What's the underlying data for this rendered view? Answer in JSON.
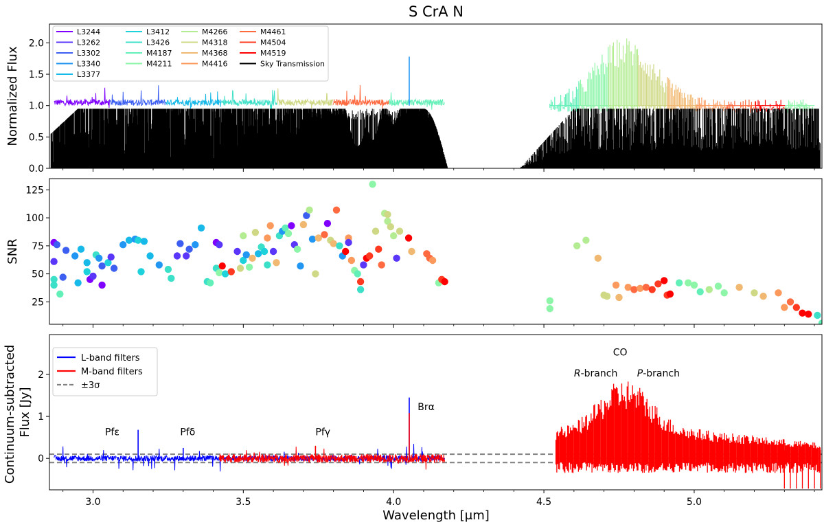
{
  "chart_data": [
    {
      "type": "line",
      "title": "S CrA N",
      "xlabel": "",
      "ylabel": "Normalized Flux",
      "xlim": [
        2.855,
        5.425
      ],
      "ylim": [
        0.0,
        2.3
      ],
      "yticks": [
        0.0,
        0.5,
        1.0,
        1.5,
        2.0
      ],
      "yticklabels": [
        "0.0",
        "0.5",
        "1.0",
        "1.5",
        "2.0"
      ],
      "legend_position": "top-left",
      "legend": [
        {
          "label": "L3244",
          "color": "#7f00ff"
        },
        {
          "label": "L3262",
          "color": "#5a35fa"
        },
        {
          "label": "L3302",
          "color": "#3c5ff2"
        },
        {
          "label": "L3340",
          "color": "#2196f3"
        },
        {
          "label": "L3377",
          "color": "#17b9e8"
        },
        {
          "label": "L3412",
          "color": "#1ed2dc"
        },
        {
          "label": "L3426",
          "color": "#3ce0c8"
        },
        {
          "label": "M4187",
          "color": "#62f0b8"
        },
        {
          "label": "M4211",
          "color": "#8cf5a8"
        },
        {
          "label": "M4266",
          "color": "#b4ec94"
        },
        {
          "label": "M4318",
          "color": "#cfd884"
        },
        {
          "label": "M4368",
          "color": "#f0b870"
        },
        {
          "label": "M4416",
          "color": "#fc9a5e"
        },
        {
          "label": "M4461",
          "color": "#ff6a40"
        },
        {
          "label": "M4504",
          "color": "#ff3a20"
        },
        {
          "label": "M4519",
          "color": "#ff0000"
        },
        {
          "label": "Sky Transmission",
          "color": "#000000"
        }
      ],
      "series": [
        {
          "name": "L-band normalized flux",
          "x_range": [
            2.87,
            4.17
          ],
          "level": 1.05,
          "spread": 0.1
        },
        {
          "name": "M-band normalized flux",
          "x_range": [
            4.52,
            5.4
          ],
          "level": 1.15,
          "spread": 0.45,
          "peak": 2.0
        },
        {
          "name": "Sky Transmission",
          "segments": [
            [
              2.86,
              4.18
            ],
            [
              4.42,
              5.42
            ]
          ],
          "gap": [
            4.18,
            4.42
          ],
          "level": 0.95
        },
        {
          "name": "Br alpha spike",
          "x": 4.052,
          "y": 1.78
        }
      ]
    },
    {
      "type": "scatter",
      "title": "",
      "xlabel": "",
      "ylabel": "SNR",
      "xlim": [
        2.855,
        5.425
      ],
      "ylim": [
        5,
        135
      ],
      "yticks": [
        25,
        50,
        75,
        100,
        125
      ],
      "yticklabels": [
        "25",
        "50",
        "75",
        "100",
        "125"
      ],
      "points": [
        [
          2.87,
          78,
          "#7f00ff"
        ],
        [
          2.87,
          61,
          "#5a35fa"
        ],
        [
          2.88,
          76,
          "#3c5ff2"
        ],
        [
          2.87,
          45,
          "#3ce0c8"
        ],
        [
          2.87,
          40,
          "#3ce0c8"
        ],
        [
          2.89,
          32,
          "#62f0b8"
        ],
        [
          2.9,
          47,
          "#3c5ff2"
        ],
        [
          2.91,
          71,
          "#3c5ff2"
        ],
        [
          2.94,
          66,
          "#2196f3"
        ],
        [
          2.95,
          42,
          "#17b9e8"
        ],
        [
          2.96,
          72,
          "#17b9e8"
        ],
        [
          2.98,
          60,
          "#17b9e8"
        ],
        [
          2.98,
          52,
          "#1ed2dc"
        ],
        [
          2.99,
          45,
          "#7f00ff"
        ],
        [
          3.0,
          48,
          "#5a35fa"
        ],
        [
          3.01,
          67,
          "#3ce0c8"
        ],
        [
          3.02,
          64,
          "#2196f3"
        ],
        [
          3.03,
          40,
          "#7f00ff"
        ],
        [
          3.03,
          57,
          "#3c5ff2"
        ],
        [
          3.05,
          60,
          "#1ed2dc"
        ],
        [
          3.06,
          65,
          "#5a35fa"
        ],
        [
          3.07,
          55,
          "#3c5ff2"
        ],
        [
          3.1,
          76,
          "#2196f3"
        ],
        [
          3.12,
          80,
          "#17b9e8"
        ],
        [
          3.14,
          81,
          "#2196f3"
        ],
        [
          3.15,
          80,
          "#1ed2dc"
        ],
        [
          3.17,
          79,
          "#17b9e8"
        ],
        [
          3.16,
          52,
          "#1ed2dc"
        ],
        [
          3.19,
          66,
          "#17b9e8"
        ],
        [
          3.22,
          58,
          "#2196f3"
        ],
        [
          3.25,
          54,
          "#3ce0c8"
        ],
        [
          3.26,
          46,
          "#3ce0c8"
        ],
        [
          3.28,
          66,
          "#5a35fa"
        ],
        [
          3.29,
          77,
          "#3c5ff2"
        ],
        [
          3.31,
          66,
          "#5a35fa"
        ],
        [
          3.32,
          72,
          "#3c5ff2"
        ],
        [
          3.34,
          76,
          "#2196f3"
        ],
        [
          3.36,
          91,
          "#17b9e8"
        ],
        [
          3.38,
          43,
          "#3ce0c8"
        ],
        [
          3.39,
          42,
          "#62f0b8"
        ],
        [
          3.41,
          78,
          "#7f00ff"
        ],
        [
          3.42,
          76,
          "#5a35fa"
        ],
        [
          3.41,
          55,
          "#3ce0c8"
        ],
        [
          3.42,
          51,
          "#8cf5a8"
        ],
        [
          3.43,
          57,
          "#ff0000"
        ],
        [
          3.44,
          50,
          "#1ed2dc"
        ],
        [
          3.46,
          52,
          "#ff3a20"
        ],
        [
          3.48,
          70,
          "#5a35fa"
        ],
        [
          3.49,
          55,
          "#cfd884"
        ],
        [
          3.5,
          62,
          "#1ed2dc"
        ],
        [
          3.5,
          84,
          "#b4ec94"
        ],
        [
          3.51,
          67,
          "#2196f3"
        ],
        [
          3.52,
          56,
          "#8cf5a8"
        ],
        [
          3.53,
          64,
          "#f0b870"
        ],
        [
          3.54,
          87,
          "#cfd884"
        ],
        [
          3.55,
          68,
          "#17b9e8"
        ],
        [
          3.56,
          74,
          "#3ce0c8"
        ],
        [
          3.57,
          70,
          "#1ed2dc"
        ],
        [
          3.58,
          82,
          "#fc9a5e"
        ],
        [
          3.58,
          58,
          "#3ce0c8"
        ],
        [
          3.59,
          93,
          "#fc9a5e"
        ],
        [
          3.6,
          70,
          "#5a35fa"
        ],
        [
          3.61,
          60,
          "#f0b870"
        ],
        [
          3.62,
          84,
          "#3ce0c8"
        ],
        [
          3.63,
          88,
          "#2196f3"
        ],
        [
          3.64,
          91,
          "#62f0b8"
        ],
        [
          3.65,
          86,
          "#8cf5a8"
        ],
        [
          3.66,
          93,
          "#7f00ff"
        ],
        [
          3.67,
          76,
          "#5a35fa"
        ],
        [
          3.68,
          72,
          "#8cf5a8"
        ],
        [
          3.69,
          57,
          "#2196f3"
        ],
        [
          3.7,
          94,
          "#f0b870"
        ],
        [
          3.71,
          102,
          "#3c5ff2"
        ],
        [
          3.72,
          107,
          "#b4ec94"
        ],
        [
          3.73,
          81,
          "#2196f3"
        ],
        [
          3.74,
          50,
          "#cfd884"
        ],
        [
          3.75,
          82,
          "#f0b870"
        ],
        [
          3.77,
          85,
          "#ff6a40"
        ],
        [
          3.78,
          95,
          "#7f00ff"
        ],
        [
          3.79,
          80,
          "#cfd884"
        ],
        [
          3.8,
          77,
          "#f0b870"
        ],
        [
          3.81,
          107,
          "#ff6a40"
        ],
        [
          3.82,
          75,
          "#3ce0c8"
        ],
        [
          3.83,
          66,
          "#2196f3"
        ],
        [
          3.84,
          70,
          "#ff0000"
        ],
        [
          3.85,
          82,
          "#fc9a5e"
        ],
        [
          3.85,
          78,
          "#5a35fa"
        ],
        [
          3.86,
          62,
          "#fc9a5e"
        ],
        [
          3.87,
          53,
          "#8cf5a8"
        ],
        [
          3.88,
          50,
          "#62f0b8"
        ],
        [
          3.89,
          43,
          "#ff3a20"
        ],
        [
          3.89,
          36,
          "#3ce0c8"
        ],
        [
          3.9,
          58,
          "#5a35fa"
        ],
        [
          3.91,
          64,
          "#ff0000"
        ],
        [
          3.92,
          66,
          "#ff3a20"
        ],
        [
          3.93,
          130,
          "#8cf5a8"
        ],
        [
          3.94,
          88,
          "#cfd884"
        ],
        [
          3.95,
          72,
          "#ff3a20"
        ],
        [
          3.96,
          58,
          "#ff6a40"
        ],
        [
          3.97,
          104,
          "#b4ec94"
        ],
        [
          3.98,
          97,
          "#b4ec94"
        ],
        [
          3.98,
          103,
          "#cfd884"
        ],
        [
          3.99,
          92,
          "#cfd884"
        ],
        [
          4.0,
          84,
          "#b4ec94"
        ],
        [
          4.01,
          64,
          "#5a35fa"
        ],
        [
          4.02,
          88,
          "#cfd884"
        ],
        [
          4.05,
          82,
          "#ff0000"
        ],
        [
          4.06,
          70,
          "#f0b870"
        ],
        [
          4.11,
          68,
          "#ff6a40"
        ],
        [
          4.12,
          64,
          "#ff6a40"
        ],
        [
          4.13,
          62,
          "#fc9a5e"
        ],
        [
          4.15,
          42,
          "#8cf5a8"
        ],
        [
          4.16,
          45,
          "#ff3a20"
        ],
        [
          4.17,
          43,
          "#ff0000"
        ],
        [
          4.52,
          26,
          "#8cf5a8"
        ],
        [
          4.52,
          19,
          "#8cf5a8"
        ],
        [
          4.61,
          75,
          "#b4ec94"
        ],
        [
          4.64,
          80,
          "#b4ec94"
        ],
        [
          4.68,
          64,
          "#f0b870"
        ],
        [
          4.7,
          31,
          "#cfd884"
        ],
        [
          4.71,
          30,
          "#cfd884"
        ],
        [
          4.74,
          40,
          "#fc9a5e"
        ],
        [
          4.75,
          29,
          "#f0b870"
        ],
        [
          4.78,
          38,
          "#fc9a5e"
        ],
        [
          4.8,
          36,
          "#ff6a40"
        ],
        [
          4.82,
          37,
          "#fc9a5e"
        ],
        [
          4.84,
          38,
          "#ff6a40"
        ],
        [
          4.86,
          36,
          "#ff3a20"
        ],
        [
          4.88,
          41,
          "#ff3a20"
        ],
        [
          4.9,
          44,
          "#ff0000"
        ],
        [
          4.91,
          31,
          "#ff3a20"
        ],
        [
          4.92,
          32,
          "#ff0000"
        ],
        [
          4.95,
          42,
          "#62f0b8"
        ],
        [
          4.98,
          42,
          "#8cf5a8"
        ],
        [
          5.0,
          40,
          "#8cf5a8"
        ],
        [
          5.02,
          34,
          "#62f0b8"
        ],
        [
          5.05,
          36,
          "#b4ec94"
        ],
        [
          5.08,
          39,
          "#8cf5a8"
        ],
        [
          5.1,
          33,
          "#8cf5a8"
        ],
        [
          5.15,
          38,
          "#f0b870"
        ],
        [
          5.2,
          33,
          "#cfd884"
        ],
        [
          5.23,
          30,
          "#f0b870"
        ],
        [
          5.28,
          33,
          "#fc9a5e"
        ],
        [
          5.3,
          20,
          "#fc9a5e"
        ],
        [
          5.32,
          25,
          "#ff6a40"
        ],
        [
          5.34,
          20,
          "#ff3a20"
        ],
        [
          5.36,
          15,
          "#ff0000"
        ],
        [
          5.38,
          14,
          "#ff0000"
        ],
        [
          5.41,
          13,
          "#3ce0c8"
        ],
        [
          5.425,
          6,
          "#62f0b8"
        ]
      ]
    },
    {
      "type": "line",
      "title": "",
      "xlabel": "Wavelength [μm]",
      "ylabel": "Continuum-subtracted Flux [Jy]",
      "ylabel_lines": [
        "Continuum-subtracted",
        "Flux [Jy]"
      ],
      "xlim": [
        2.855,
        5.425
      ],
      "ylim": [
        -0.75,
        2.95
      ],
      "xticks": [
        3.0,
        3.5,
        4.0,
        4.5,
        5.0
      ],
      "xticklabels": [
        "3.0",
        "3.5",
        "4.0",
        "4.5",
        "5.0"
      ],
      "yticks": [
        0,
        1,
        2
      ],
      "yticklabels": [
        "0",
        "1",
        "2"
      ],
      "legend_position": "top-left",
      "legend": [
        {
          "label": "L-band filters",
          "color": "#0000ff",
          "style": "solid"
        },
        {
          "label": "M-band filters",
          "color": "#ff0000",
          "style": "solid"
        },
        {
          "label": "±3σ",
          "color": "#808080",
          "style": "dashed"
        }
      ],
      "sigma_level": 0.1,
      "series": [
        {
          "name": "L-band filters",
          "x_range": [
            2.87,
            4.17
          ],
          "level": 0.0
        },
        {
          "name": "M-band filters",
          "x_range": [
            3.42,
            4.17
          ],
          "level": 0.0
        },
        {
          "name": "M-band filters CO",
          "x_range": [
            4.54,
            5.42
          ],
          "level": 0.0,
          "peak": 1.9
        }
      ],
      "lines": [
        {
          "x": 3.15,
          "y": 0.68
        },
        {
          "x": 3.3,
          "y": 0.25
        },
        {
          "x": 3.74,
          "y": 0.3
        },
        {
          "x": 4.052,
          "y": 1.45
        }
      ],
      "annotations": [
        {
          "text": "Pfε",
          "x": 3.04,
          "y": 0.55
        },
        {
          "text": "Pfδ",
          "x": 3.29,
          "y": 0.55
        },
        {
          "text": "Pfγ",
          "x": 3.74,
          "y": 0.55
        },
        {
          "text": "Brα",
          "x": 4.08,
          "y": 1.15
        },
        {
          "text": "CO",
          "x": 4.73,
          "y": 2.45
        },
        {
          "text": "R-branch",
          "x": 4.6,
          "y": 1.95
        },
        {
          "text": "P-branch",
          "x": 4.81,
          "y": 1.95
        }
      ]
    }
  ]
}
